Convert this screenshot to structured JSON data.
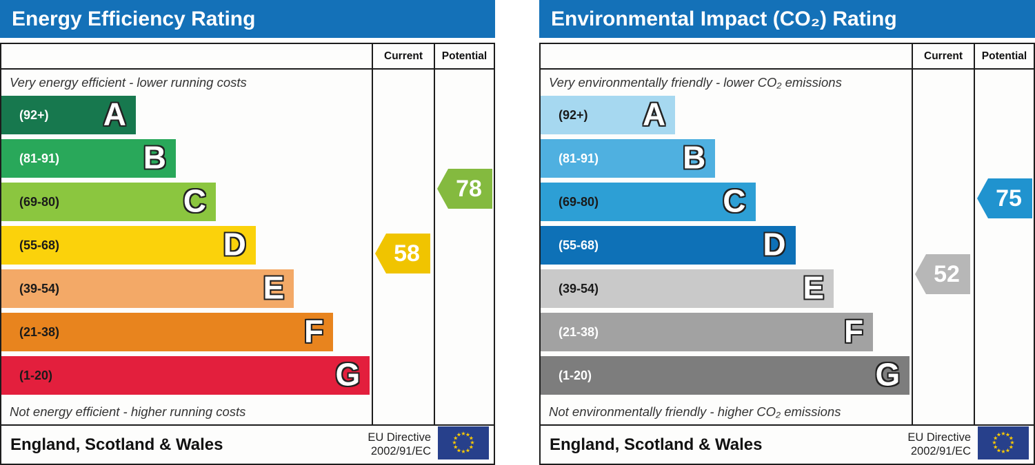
{
  "charts": [
    {
      "title": "Energy Efficiency Rating",
      "header": {
        "current": "Current",
        "potential": "Potential"
      },
      "top_note": "Very energy efficient - lower running costs",
      "bottom_note": "Not energy efficient - higher running costs",
      "bands": [
        {
          "letter": "A",
          "range_label": "(92+)",
          "min": 92,
          "max": 100,
          "color": "#17784e",
          "label_color": "#ffffff",
          "width_pct": 36.3
        },
        {
          "letter": "B",
          "range_label": "(81-91)",
          "min": 81,
          "max": 91,
          "color": "#29a85a",
          "label_color": "#ffffff",
          "width_pct": 47.1
        },
        {
          "letter": "C",
          "range_label": "(69-80)",
          "min": 69,
          "max": 80,
          "color": "#8bc63f",
          "label_color": "#1a1a1a",
          "width_pct": 57.9
        },
        {
          "letter": "D",
          "range_label": "(55-68)",
          "min": 55,
          "max": 68,
          "color": "#fbd20b",
          "label_color": "#1a1a1a",
          "width_pct": 68.7
        },
        {
          "letter": "E",
          "range_label": "(39-54)",
          "min": 39,
          "max": 54,
          "color": "#f3a967",
          "label_color": "#1a1a1a",
          "width_pct": 79.0
        },
        {
          "letter": "F",
          "range_label": "(21-38)",
          "min": 21,
          "max": 38,
          "color": "#e8841e",
          "label_color": "#1a1a1a",
          "width_pct": 89.6
        },
        {
          "letter": "G",
          "range_label": "(1-20)",
          "min": 1,
          "max": 20,
          "color": "#e31f3d",
          "label_color": "#1a1a1a",
          "width_pct": 99.5
        }
      ],
      "current": {
        "value": 58,
        "color": "#f0c400"
      },
      "potential": {
        "value": 78,
        "color": "#84ba3f"
      },
      "footer": {
        "region": "England, Scotland & Wales",
        "directive_line1": "EU Directive",
        "directive_line2": "2002/91/EC"
      }
    },
    {
      "title": "Environmental Impact (CO₂) Rating",
      "header": {
        "current": "Current",
        "potential": "Potential"
      },
      "top_note": "Very environmentally friendly - lower CO₂ emissions",
      "bottom_note": "Not environmentally friendly - higher CO₂ emissions",
      "bands": [
        {
          "letter": "A",
          "range_label": "(92+)",
          "min": 92,
          "max": 100,
          "color": "#a6d8f0",
          "label_color": "#1a1a1a",
          "width_pct": 36.3
        },
        {
          "letter": "B",
          "range_label": "(81-91)",
          "min": 81,
          "max": 91,
          "color": "#4fb0e0",
          "label_color": "#ffffff",
          "width_pct": 47.1
        },
        {
          "letter": "C",
          "range_label": "(69-80)",
          "min": 69,
          "max": 80,
          "color": "#2d9fd5",
          "label_color": "#1a1a1a",
          "width_pct": 57.9
        },
        {
          "letter": "D",
          "range_label": "(55-68)",
          "min": 55,
          "max": 68,
          "color": "#0e71b7",
          "label_color": "#ffffff",
          "width_pct": 68.7
        },
        {
          "letter": "E",
          "range_label": "(39-54)",
          "min": 39,
          "max": 54,
          "color": "#c9c9c9",
          "label_color": "#1a1a1a",
          "width_pct": 79.0
        },
        {
          "letter": "F",
          "range_label": "(21-38)",
          "min": 21,
          "max": 38,
          "color": "#a2a2a2",
          "label_color": "#ffffff",
          "width_pct": 89.6
        },
        {
          "letter": "G",
          "range_label": "(1-20)",
          "min": 1,
          "max": 20,
          "color": "#7d7d7d",
          "label_color": "#ffffff",
          "width_pct": 99.5
        }
      ],
      "current": {
        "value": 52,
        "color": "#b7b7b7"
      },
      "potential": {
        "value": 75,
        "color": "#2093cf"
      },
      "footer": {
        "region": "England, Scotland & Wales",
        "directive_line1": "EU Directive",
        "directive_line2": "2002/91/EC"
      }
    }
  ],
  "colors": {
    "title_bar": "#1471b8",
    "border": "#1c1c1c",
    "eu_flag_blue": "#27408b",
    "eu_flag_stars": "#ffcc00"
  },
  "chart_data": [
    {
      "type": "bar",
      "orientation": "horizontal",
      "title": "Energy Efficiency Rating",
      "categories": [
        "A (92+)",
        "B (81-91)",
        "C (69-80)",
        "D (55-68)",
        "E (39-54)",
        "F (21-38)",
        "G (1-20)"
      ],
      "bar_lengths_pct": [
        36.3,
        47.1,
        57.9,
        68.7,
        79.0,
        89.6,
        99.5
      ],
      "bar_colors": [
        "#17784e",
        "#29a85a",
        "#8bc63f",
        "#fbd20b",
        "#f3a967",
        "#e8841e",
        "#e31f3d"
      ],
      "markers": {
        "current": 58,
        "current_band": "D",
        "potential": 78,
        "potential_band": "C"
      },
      "legend": [
        "Current",
        "Potential"
      ],
      "annotations": [
        "Very energy efficient - lower running costs",
        "Not energy efficient - higher running costs",
        "England, Scotland & Wales",
        "EU Directive 2002/91/EC"
      ]
    },
    {
      "type": "bar",
      "orientation": "horizontal",
      "title": "Environmental Impact (CO₂) Rating",
      "categories": [
        "A (92+)",
        "B (81-91)",
        "C (69-80)",
        "D (55-68)",
        "E (39-54)",
        "F (21-38)",
        "G (1-20)"
      ],
      "bar_lengths_pct": [
        36.3,
        47.1,
        57.9,
        68.7,
        79.0,
        89.6,
        99.5
      ],
      "bar_colors": [
        "#a6d8f0",
        "#4fb0e0",
        "#2d9fd5",
        "#0e71b7",
        "#c9c9c9",
        "#a2a2a2",
        "#7d7d7d"
      ],
      "markers": {
        "current": 52,
        "current_band": "E",
        "potential": 75,
        "potential_band": "C"
      },
      "legend": [
        "Current",
        "Potential"
      ],
      "annotations": [
        "Very environmentally friendly - lower CO₂ emissions",
        "Not environmentally friendly - higher CO₂ emissions",
        "England, Scotland & Wales",
        "EU Directive 2002/91/EC"
      ]
    }
  ]
}
